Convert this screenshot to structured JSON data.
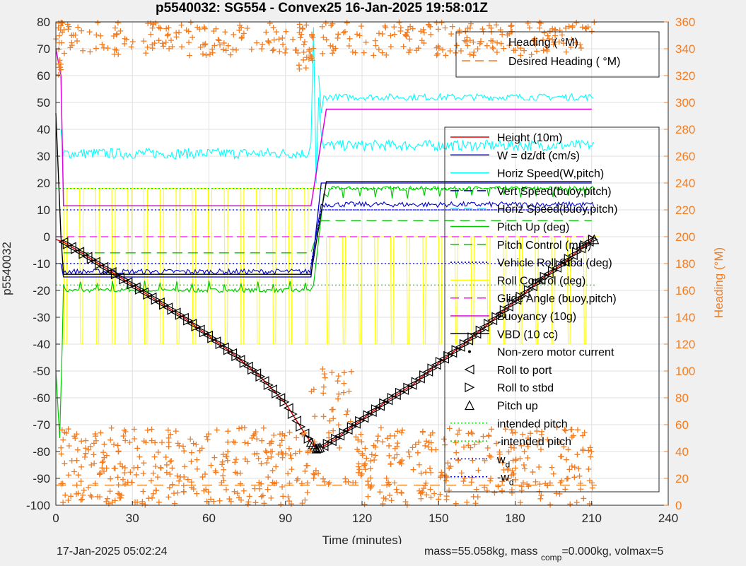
{
  "footer": {
    "date": "17-Jan-2025 05:02:24",
    "mass_text": "mass=55.058kg, mass",
    "mass_sub": "comp",
    "mass_rest": "=0.000kg, volmax=5"
  },
  "chart_data": {
    "type": "line",
    "title": "p5540032: SG554 - Convex25 16-Jan-2025 19:58:01Z",
    "xlabel": "Time (minutes)",
    "ylabel": "p5540032",
    "y2label": "Heading (°M)",
    "xlim": [
      0,
      240
    ],
    "ylim": [
      -100,
      80
    ],
    "y2lim": [
      0,
      360
    ],
    "xticks": [
      "0",
      "30",
      "60",
      "90",
      "120",
      "150",
      "180",
      "210",
      "240"
    ],
    "yticks": [
      "80",
      "70",
      "60",
      "50",
      "40",
      "30",
      "20",
      "10",
      "0",
      "-10",
      "-20",
      "-30",
      "-40",
      "-50",
      "-60",
      "-70",
      "-80",
      "-90",
      "-100"
    ],
    "y2ticks": [
      "360",
      "340",
      "320",
      "300",
      "280",
      "260",
      "240",
      "220",
      "200",
      "180",
      "160",
      "140",
      "120",
      "100",
      "80",
      "60",
      "40",
      "20",
      "0"
    ],
    "grid": true,
    "colors": {
      "heading": "#f47c20",
      "height": "#e00000",
      "w": "#0000cc",
      "horiz_speed_w": "#00ffff",
      "vert_speed": "#0000cc",
      "pitch": "#00cc00",
      "roll": "#ffff00",
      "glide": "#ff00ff",
      "buoyancy": "#e000e0",
      "vbd": "#000000",
      "intended": "#00dd00",
      "wd": "#0000ff"
    },
    "legend_heading": [
      {
        "label": "Heading (  °M)",
        "style": "plus",
        "color": "#f47c20"
      },
      {
        "label": "Desired Heading (    °M)",
        "style": "dash",
        "color": "#f47c20"
      }
    ],
    "legend_main": [
      {
        "label": "Height (10m)",
        "style": "solid",
        "color": "#e00000"
      },
      {
        "label": "W = dz/dt (cm/s)",
        "style": "solid",
        "color": "#0000cc"
      },
      {
        "label": "Horiz Speed(W,pitch)",
        "style": "solid",
        "color": "#00ffff"
      },
      {
        "label": "Vert Speed(buoy,pitch)",
        "style": "dash",
        "color": "#0000cc"
      },
      {
        "label": "Horiz Speed(buoy,pitch)",
        "style": "dash",
        "color": "#00ffff"
      },
      {
        "label": "Pitch Up (deg)",
        "style": "solid",
        "color": "#00cc00"
      },
      {
        "label": "Pitch Control (mm)",
        "style": "dash",
        "color": "#00cc00"
      },
      {
        "label": "Vehicle Roll Stbd (deg)",
        "style": "dot",
        "color": "#0000cc"
      },
      {
        "label": "Roll Control (deg)",
        "style": "solid",
        "color": "#ffff00"
      },
      {
        "label": "Glide Angle (buoy,pitch)",
        "style": "dash",
        "color": "#ff00ff"
      },
      {
        "label": "Buoyancy (10g)",
        "style": "solid",
        "color": "#e000e0"
      },
      {
        "label": "VBD (10 cc)",
        "style": "solid",
        "color": "#000000"
      },
      {
        "label": "Non-zero motor current",
        "style": "point",
        "color": "#000000"
      },
      {
        "label": "Roll to port",
        "style": "tri-left",
        "color": "#000000"
      },
      {
        "label": "Roll to stbd",
        "style": "tri-right",
        "color": "#000000"
      },
      {
        "label": "Pitch up",
        "style": "tri-up",
        "color": "#000000"
      },
      {
        "label": "intended pitch",
        "style": "dot",
        "color": "#00dd00"
      },
      {
        "label": "-intended pitch",
        "style": "dot",
        "color": "#00dd00"
      },
      {
        "label": "w",
        "sub": "d",
        "style": "dot",
        "color": "#0000ff"
      },
      {
        "label": "-w",
        "sub": "d",
        "style": "dot",
        "color": "#0000ff"
      }
    ],
    "series": {
      "height": [
        [
          0,
          -1
        ],
        [
          3,
          -2
        ],
        [
          10,
          -6
        ],
        [
          20,
          -12
        ],
        [
          30,
          -18
        ],
        [
          40,
          -24
        ],
        [
          50,
          -30
        ],
        [
          60,
          -37
        ],
        [
          70,
          -44
        ],
        [
          80,
          -52
        ],
        [
          90,
          -62
        ],
        [
          98,
          -74
        ],
        [
          102,
          -79
        ],
        [
          105,
          -78
        ],
        [
          110,
          -75
        ],
        [
          120,
          -68
        ],
        [
          130,
          -61
        ],
        [
          140,
          -55
        ],
        [
          150,
          -47
        ],
        [
          160,
          -40
        ],
        [
          170,
          -32
        ],
        [
          180,
          -24
        ],
        [
          190,
          -16
        ],
        [
          200,
          -9
        ],
        [
          210,
          -1
        ]
      ],
      "w_descent": -13,
      "w_ascent": 12,
      "horiz_speed_w_descent": 31,
      "horiz_speed_w_ascent": 33,
      "horiz_speed_buoy_ascent": 52,
      "vert_speed_buoy_descent": -15,
      "vert_speed_buoy_ascent": 20,
      "pitch_up_descent": -20,
      "pitch_up_ascent": 18,
      "pitch_control_descent": -6,
      "pitch_control_ascent": 6,
      "vehicle_roll": [
        [
          0,
          -10
        ],
        [
          100,
          -10
        ],
        [
          104,
          10
        ],
        [
          210,
          10
        ]
      ],
      "roll_control_range": [
        -40,
        18
      ],
      "glide_angle": [
        [
          0,
          0
        ],
        [
          210,
          0
        ]
      ],
      "buoyancy": [
        [
          0,
          70
        ],
        [
          2,
          60
        ],
        [
          3,
          11.5
        ],
        [
          100,
          11.5
        ],
        [
          106,
          47.5
        ],
        [
          210,
          47.5
        ]
      ],
      "vbd": [
        [
          0,
          46
        ],
        [
          2,
          0
        ],
        [
          3,
          -14
        ],
        [
          100,
          -14
        ],
        [
          106,
          20.5
        ],
        [
          210,
          20.5
        ]
      ],
      "intended_pitch": 18,
      "wd": 10,
      "heading_descent_center": 35,
      "heading_top_band": [
        335,
        360
      ],
      "desired_heading": 15
    }
  }
}
